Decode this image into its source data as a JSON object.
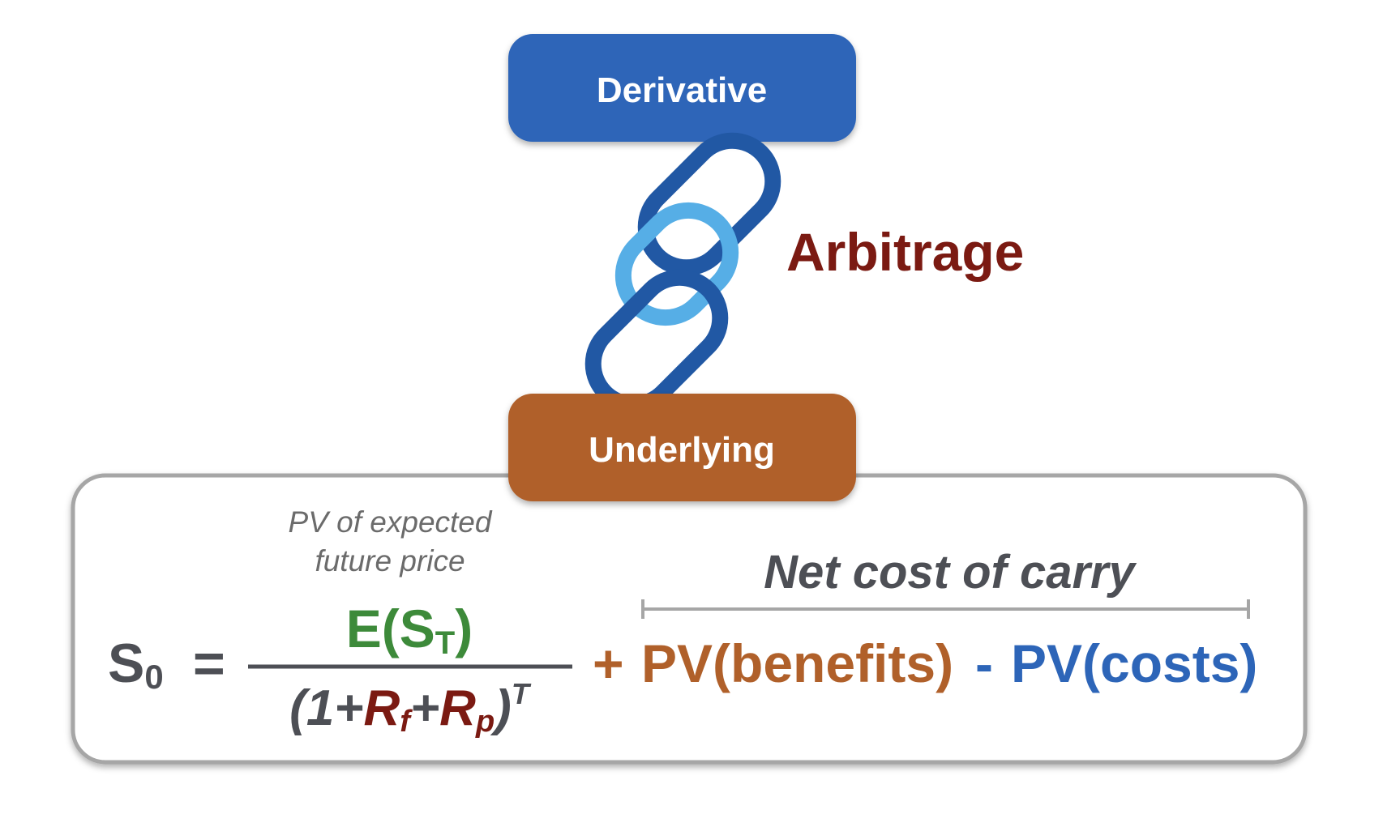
{
  "nodes": {
    "derivative": {
      "label": "Derivative"
    },
    "underlying": {
      "label": "Underlying"
    },
    "link": {
      "label": "Arbitrage"
    }
  },
  "formula": {
    "lhs": {
      "symbol": "S",
      "subscript": "0"
    },
    "equals": "=",
    "numerator": {
      "open": "E(S",
      "subscript": "T",
      "close": ")"
    },
    "numerator_note": [
      "PV of expected",
      "future price"
    ],
    "denominator": {
      "open": "(1+",
      "r1": "R",
      "r1_sub": "f",
      "plus": "+",
      "r2": "R",
      "r2_sub": "p",
      "close": ")",
      "exponent": "T"
    },
    "plus": "+",
    "benefits": "PV(benefits)",
    "minus": "-",
    "costs": "PV(costs)",
    "bracket_label": "Net cost of carry"
  }
}
